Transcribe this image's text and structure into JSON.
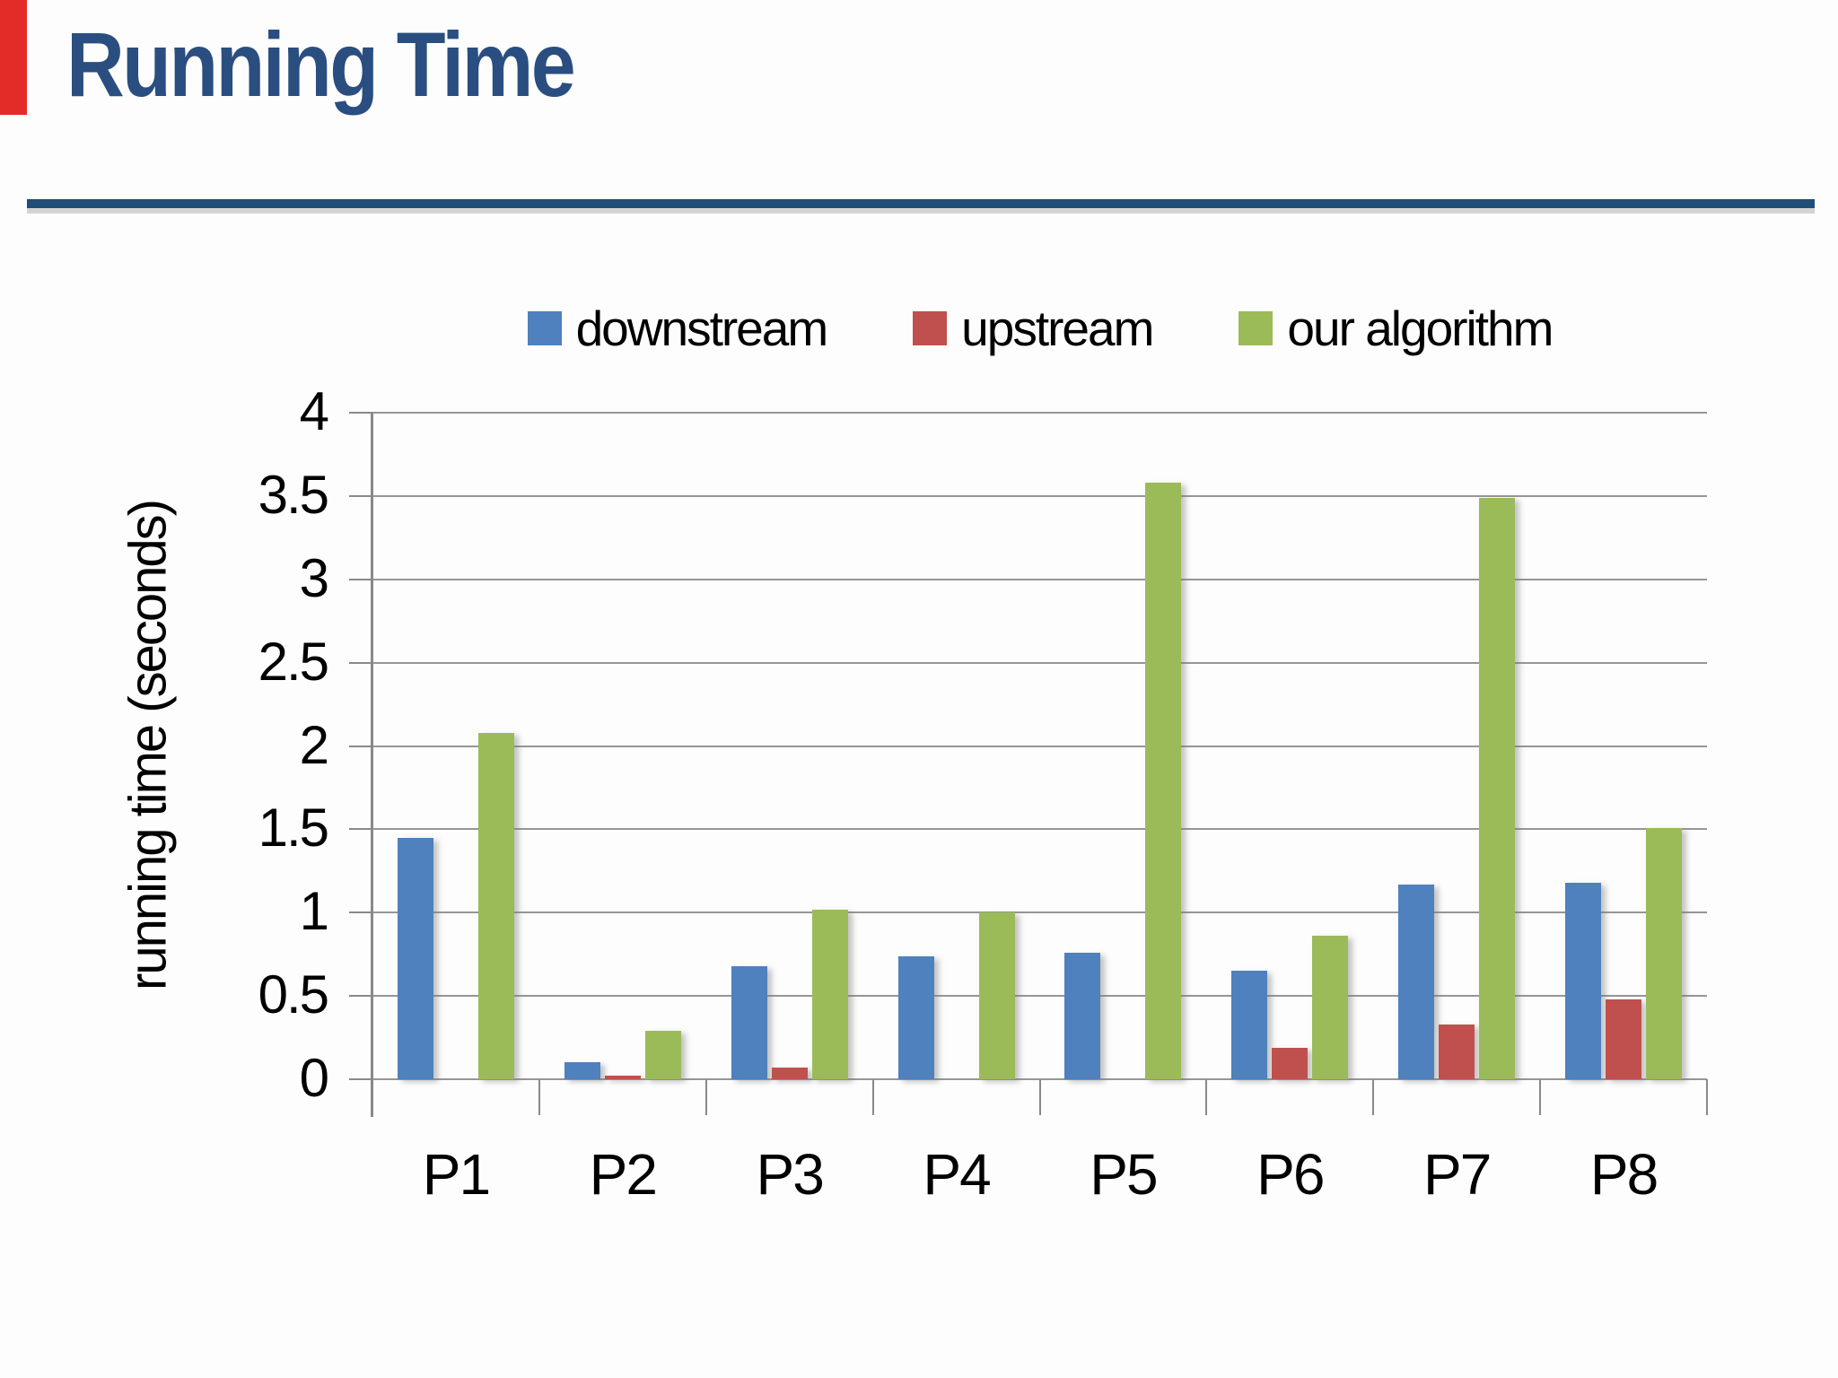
{
  "title": "Running Time",
  "decor": {
    "red_strip_color": "#e32b27",
    "title_color": "#2a4e80",
    "rule_color": "#1f4e79",
    "grid_color": "#969696",
    "axis_color": "#898989",
    "background_color": "#fdfdfd"
  },
  "legend": [
    {
      "name": "downstream-swatch",
      "label": "downstream",
      "color": "#4e81bd"
    },
    {
      "name": "upstream-swatch",
      "label": "upstream",
      "color": "#c0504d"
    },
    {
      "name": "our-algorithm-swatch",
      "label": "our algorithm",
      "color": "#9bbb59"
    }
  ],
  "chart_data": {
    "type": "bar",
    "categories": [
      "P1",
      "P2",
      "P3",
      "P4",
      "P5",
      "P6",
      "P7",
      "P8"
    ],
    "series": [
      {
        "name": "downstream",
        "color": "#4e81bd",
        "values": [
          1.45,
          0.1,
          0.68,
          0.74,
          0.76,
          0.65,
          1.17,
          1.18
        ]
      },
      {
        "name": "upstream",
        "color": "#c0504d",
        "values": [
          0,
          0.02,
          0.07,
          0,
          0,
          0.19,
          0.33,
          0.48
        ]
      },
      {
        "name": "our algorithm",
        "color": "#9bbb59",
        "values": [
          2.08,
          0.29,
          1.02,
          1.0,
          3.58,
          0.86,
          3.49,
          1.51
        ]
      }
    ],
    "title": "",
    "xlabel": "",
    "ylabel": "running time (seconds)",
    "ylim": [
      0,
      4
    ],
    "ytick_step": 0.5,
    "yticks_top_to_bottom": [
      "4",
      "3.5",
      "3",
      "2.5",
      "2",
      "1.5",
      "1",
      "0.5",
      "0"
    ],
    "grid": true,
    "legend_position": "top"
  }
}
